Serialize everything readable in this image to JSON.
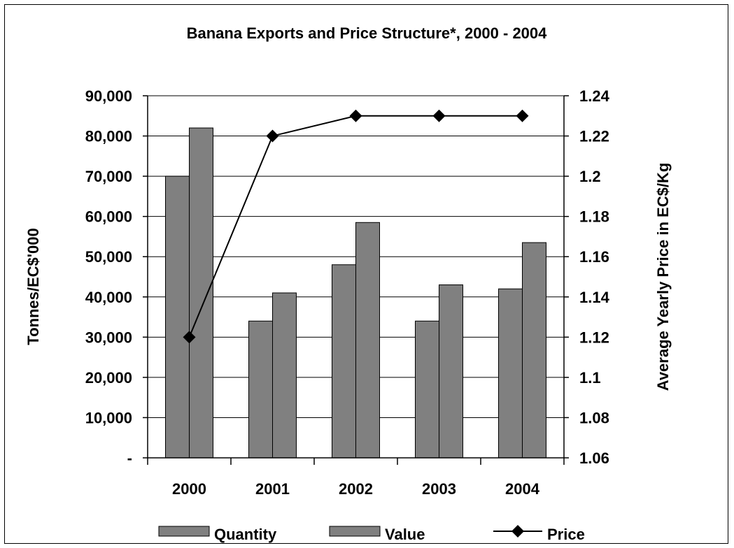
{
  "chart_data": {
    "type": "bar",
    "title": "Banana Exports and Price Structure*, 2000 - 2004",
    "categories": [
      "2000",
      "2001",
      "2002",
      "2003",
      "2004"
    ],
    "series": [
      {
        "name": "Quantity",
        "kind": "bar",
        "axis": "left",
        "values": [
          70000,
          34000,
          48000,
          34000,
          42000
        ]
      },
      {
        "name": "Value",
        "kind": "bar",
        "axis": "left",
        "values": [
          82000,
          41000,
          58500,
          43000,
          53500
        ]
      },
      {
        "name": "Price",
        "kind": "line",
        "axis": "right",
        "marker": "diamond",
        "values": [
          1.12,
          1.22,
          1.23,
          1.23,
          1.23
        ]
      }
    ],
    "ylabel_left": "Tonnes/EC$'000",
    "ylabel_right": "Average Yearly Price in EC$/Kg",
    "ylim_left": [
      0,
      90000
    ],
    "ylim_right": [
      1.06,
      1.24
    ],
    "left_ticks": [
      "-",
      "10,000",
      "20,000",
      "30,000",
      "40,000",
      "50,000",
      "60,000",
      "70,000",
      "80,000",
      "90,000"
    ],
    "right_ticks": [
      "1.06",
      "1.08",
      "1.1",
      "1.12",
      "1.14",
      "1.16",
      "1.18",
      "1.2",
      "1.22",
      "1.24"
    ],
    "grid": true,
    "legend": "bottom",
    "colors": {
      "bar": "#808080",
      "line": "#000000",
      "background": "#ffffff"
    }
  }
}
